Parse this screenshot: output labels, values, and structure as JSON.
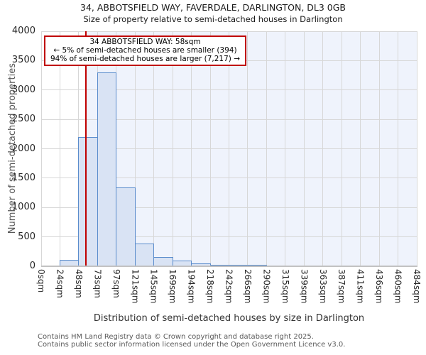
{
  "page": {
    "title": "34, ABBOTSFIELD WAY, FAVERDALE, DARLINGTON, DL3 0GB",
    "subtitle": "Size of property relative to semi-detached houses in Darlington"
  },
  "footer": {
    "line1": "Contains HM Land Registry data © Crown copyright and database right 2025.",
    "line2": "Contains public sector information licensed under the Open Government Licence v3.0."
  },
  "chart_data": {
    "type": "bar",
    "title": "34, ABBOTSFIELD WAY, FAVERDALE, DARLINGTON, DL3 0GB",
    "subtitle": "Size of property relative to semi-detached houses in Darlington",
    "xlabel": "Distribution of semi-detached houses by size in Darlington",
    "ylabel": "Number of semi-detached properties",
    "ylim": [
      0,
      4000
    ],
    "y_ticks": [
      0,
      500,
      1000,
      1500,
      2000,
      2500,
      3000,
      3500,
      4000
    ],
    "x_tick_labels": [
      "0sqm",
      "24sqm",
      "48sqm",
      "73sqm",
      "97sqm",
      "121sqm",
      "145sqm",
      "169sqm",
      "194sqm",
      "218sqm",
      "242sqm",
      "266sqm",
      "290sqm",
      "315sqm",
      "339sqm",
      "363sqm",
      "387sqm",
      "411sqm",
      "436sqm",
      "460sqm",
      "484sqm"
    ],
    "x_max_sqm": 484,
    "values": [
      0,
      110,
      2200,
      3300,
      1340,
      390,
      160,
      95,
      45,
      20,
      10,
      10,
      0,
      0,
      0,
      0,
      0,
      0,
      0,
      0
    ],
    "marker_sqm": 58,
    "annotation": {
      "line1": "34 ABBOTSFIELD WAY: 58sqm",
      "line2": "← 5% of semi-detached houses are smaller (394)",
      "line3": "94% of semi-detached houses are larger (7,217) →"
    },
    "grid": true,
    "legend": "none",
    "colors": {
      "bar_fill": "#d9e3f4",
      "bar_border": "#5a8ccc",
      "marker": "#c00000",
      "shade": "#eff3fc",
      "grid": "#d7d7d7"
    }
  }
}
